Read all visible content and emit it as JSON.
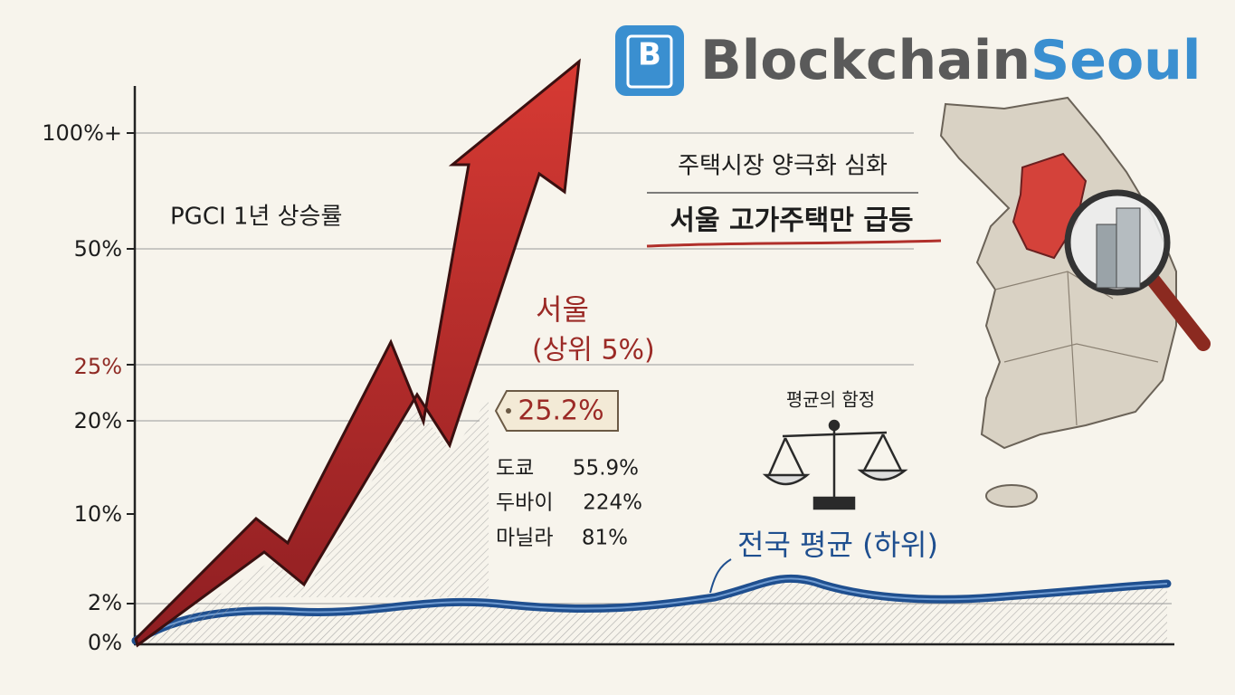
{
  "logo": {
    "icon": "B",
    "text_primary": "Blockchain",
    "text_accent": "Seoul"
  },
  "axis": {
    "ticks": [
      "100%+",
      "50%",
      "25%",
      "20%",
      "10%",
      "2%",
      "0%"
    ]
  },
  "chart_title": "PGCI 1년 상승률",
  "headline": {
    "line1": "주택시장 양극화 심화",
    "line2": "서울 고가주택만 급등"
  },
  "seoul": {
    "label": "서울",
    "sub": "(상위 5%)",
    "value": "25.2%"
  },
  "comparisons": [
    {
      "city": "도쿄",
      "value": "55.9%"
    },
    {
      "city": "두바이",
      "value": "224%"
    },
    {
      "city": "마닐라",
      "value": "81%"
    }
  ],
  "trap_label": "평균의 함정",
  "national_label": "전국 평균 (하위)"
}
